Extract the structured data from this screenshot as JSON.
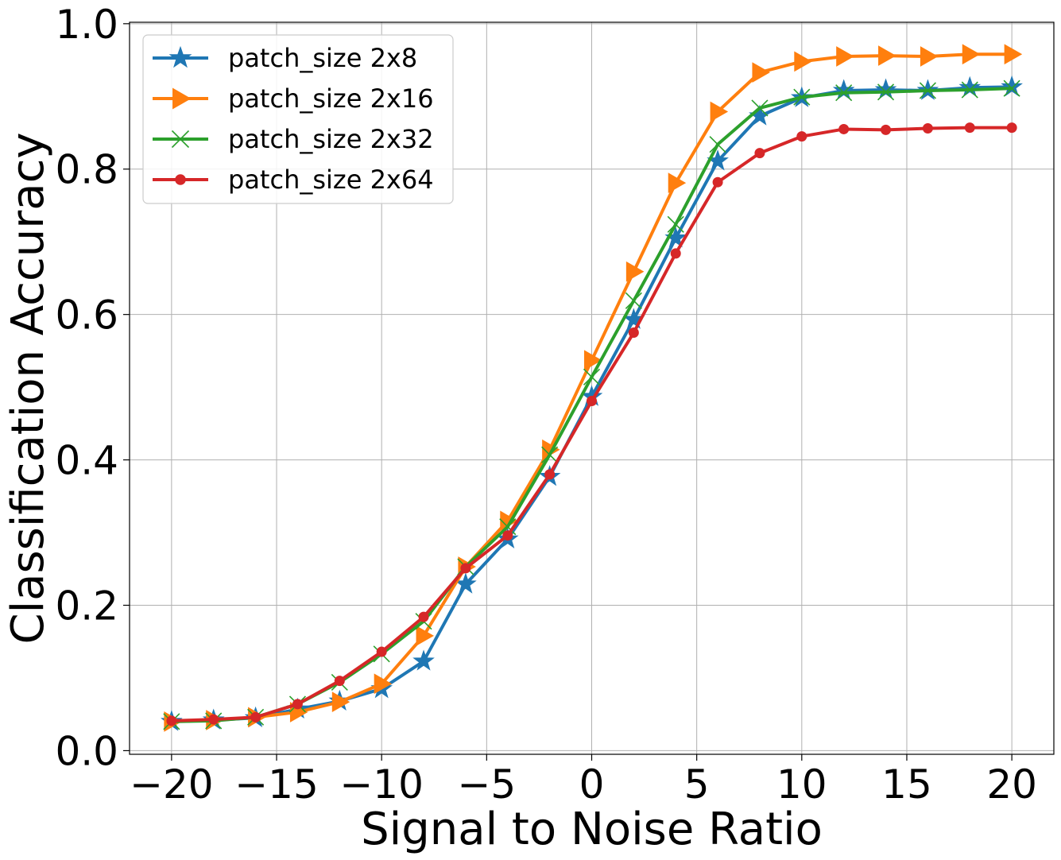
{
  "chart_data": {
    "type": "line",
    "title": "",
    "xlabel": "Signal to Noise Ratio",
    "ylabel": "Classification Accuracy",
    "xlim": [
      -22,
      22
    ],
    "ylim": [
      -0.005,
      1.002
    ],
    "xticks": [
      -20,
      -15,
      -10,
      -5,
      0,
      5,
      10,
      15,
      20
    ],
    "xtick_labels": [
      "−20",
      "−15",
      "−10",
      "−5",
      "0",
      "5",
      "10",
      "15",
      "20"
    ],
    "yticks": [
      0.0,
      0.2,
      0.4,
      0.6,
      0.8,
      1.0
    ],
    "ytick_labels": [
      "0.0",
      "0.2",
      "0.4",
      "0.6",
      "0.8",
      "1.0"
    ],
    "grid": true,
    "legend_position": "top-left",
    "x": [
      -20,
      -18,
      -16,
      -14,
      -12,
      -10,
      -8,
      -6,
      -4,
      -2,
      0,
      2,
      4,
      6,
      8,
      10,
      12,
      14,
      16,
      18,
      20
    ],
    "series": [
      {
        "name": "patch_size 2x8",
        "color": "#1f77b4",
        "marker": "star",
        "values": [
          0.04,
          0.042,
          0.045,
          0.057,
          0.068,
          0.085,
          0.123,
          0.229,
          0.291,
          0.377,
          0.487,
          0.593,
          0.705,
          0.811,
          0.873,
          0.898,
          0.908,
          0.909,
          0.908,
          0.912,
          0.913
        ]
      },
      {
        "name": "patch_size 2x16",
        "color": "#ff7f0e",
        "marker": "triangle-right",
        "values": [
          0.04,
          0.042,
          0.046,
          0.053,
          0.067,
          0.092,
          0.158,
          0.253,
          0.316,
          0.414,
          0.537,
          0.659,
          0.781,
          0.879,
          0.933,
          0.948,
          0.955,
          0.956,
          0.955,
          0.958,
          0.958
        ]
      },
      {
        "name": "patch_size 2x32",
        "color": "#2ca02c",
        "marker": "x",
        "values": [
          0.04,
          0.041,
          0.046,
          0.064,
          0.094,
          0.133,
          0.178,
          0.253,
          0.308,
          0.407,
          0.514,
          0.619,
          0.724,
          0.834,
          0.884,
          0.899,
          0.905,
          0.906,
          0.908,
          0.909,
          0.911
        ]
      },
      {
        "name": "patch_size 2x64",
        "color": "#d62728",
        "marker": "circle",
        "values": [
          0.041,
          0.043,
          0.046,
          0.064,
          0.096,
          0.136,
          0.184,
          0.251,
          0.296,
          0.38,
          0.481,
          0.575,
          0.684,
          0.782,
          0.822,
          0.845,
          0.855,
          0.854,
          0.856,
          0.857,
          0.857
        ]
      }
    ]
  }
}
